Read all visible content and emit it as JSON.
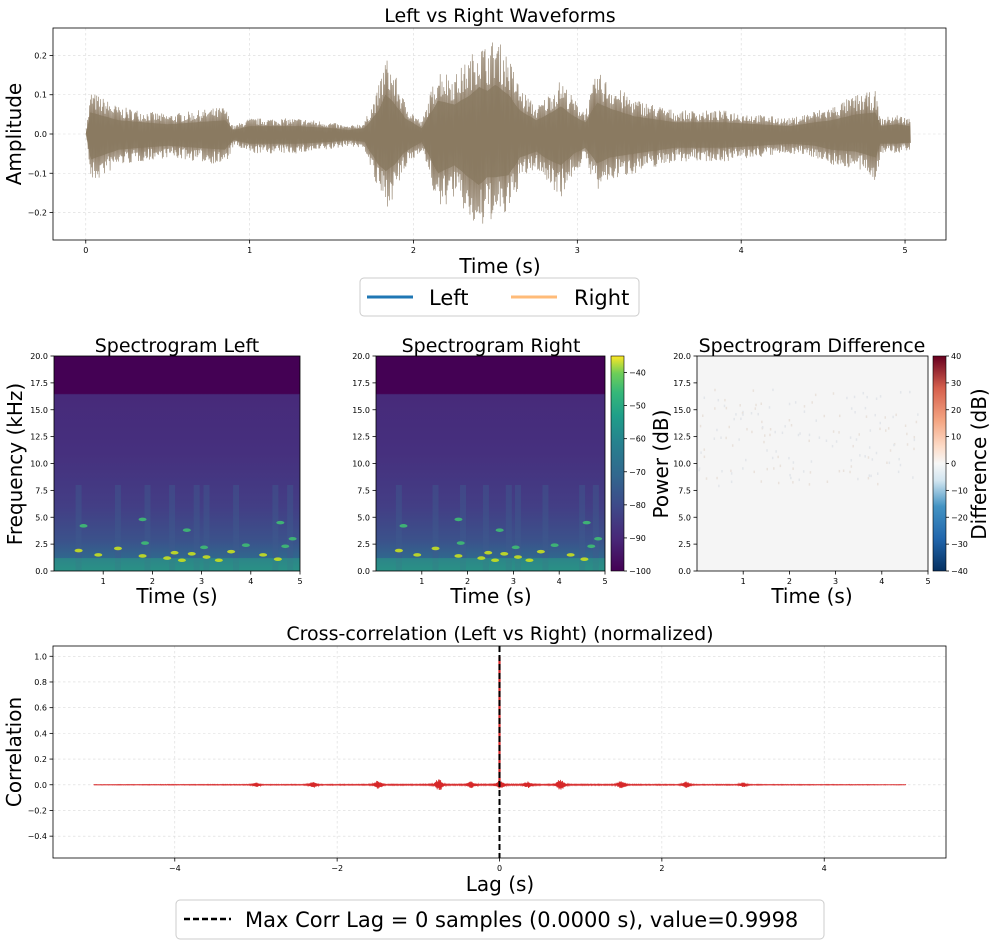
{
  "chart_data": [
    {
      "id": "waveform",
      "type": "line",
      "title": "Left vs Right Waveforms",
      "xlabel": "Time (s)",
      "ylabel": "Amplitude",
      "xlim": [
        -0.2,
        5.25
      ],
      "ylim": [
        -0.27,
        0.27
      ],
      "xticks": [
        0,
        1,
        2,
        3,
        4,
        5
      ],
      "yticks": [
        -0.2,
        -0.1,
        0.0,
        0.1,
        0.2
      ],
      "grid": true,
      "legend": {
        "placement": "below",
        "entries": [
          "Left",
          "Right"
        ]
      },
      "series": [
        {
          "name": "Left",
          "color": "#1f77b4"
        },
        {
          "name": "Right",
          "color": "#ffbb78"
        }
      ],
      "envelope": {
        "t": [
          0.0,
          0.03,
          0.2,
          0.5,
          0.85,
          0.9,
          1.0,
          1.3,
          1.5,
          1.6,
          1.7,
          1.78,
          1.83,
          1.88,
          1.95,
          2.05,
          2.1,
          2.15,
          2.25,
          2.35,
          2.4,
          2.45,
          2.5,
          2.58,
          2.65,
          2.75,
          2.82,
          2.9,
          2.98,
          3.05,
          3.12,
          3.2,
          3.35,
          3.6,
          3.9,
          4.3,
          4.45,
          4.55,
          4.7,
          4.82,
          4.85,
          4.95,
          5.03
        ],
        "upper": [
          0.0,
          0.11,
          0.07,
          0.05,
          0.07,
          0.02,
          0.04,
          0.04,
          0.03,
          0.02,
          0.03,
          0.11,
          0.2,
          0.16,
          0.08,
          0.03,
          0.1,
          0.17,
          0.15,
          0.2,
          0.24,
          0.22,
          0.25,
          0.2,
          0.12,
          0.07,
          0.1,
          0.14,
          0.09,
          0.06,
          0.16,
          0.13,
          0.09,
          0.06,
          0.06,
          0.04,
          0.06,
          0.07,
          0.1,
          0.11,
          0.04,
          0.05,
          0.04
        ],
        "lower": [
          0.0,
          -0.13,
          -0.08,
          -0.06,
          -0.08,
          -0.03,
          -0.05,
          -0.05,
          -0.04,
          -0.03,
          -0.04,
          -0.15,
          -0.19,
          -0.16,
          -0.09,
          -0.04,
          -0.12,
          -0.2,
          -0.16,
          -0.23,
          -0.26,
          -0.22,
          -0.22,
          -0.21,
          -0.12,
          -0.09,
          -0.13,
          -0.16,
          -0.1,
          -0.07,
          -0.15,
          -0.12,
          -0.1,
          -0.07,
          -0.07,
          -0.05,
          -0.06,
          -0.08,
          -0.09,
          -0.12,
          -0.05,
          -0.05,
          -0.04
        ]
      }
    },
    {
      "id": "spec-left",
      "type": "heatmap",
      "title": "Spectrogram Left",
      "xlabel": "Time (s)",
      "ylabel": "Frequency (kHz)",
      "xlim": [
        0,
        5
      ],
      "ylim": [
        0,
        20
      ],
      "xticks": [
        1,
        2,
        3,
        4,
        5
      ],
      "yticks": [
        0.0,
        2.5,
        5.0,
        7.5,
        10.0,
        12.5,
        15.0,
        17.5,
        20.0
      ],
      "colormap": "viridis"
    },
    {
      "id": "spec-right",
      "type": "heatmap",
      "title": "Spectrogram Right",
      "xlabel": "Time (s)",
      "ylabel": "",
      "xlim": [
        0,
        5
      ],
      "ylim": [
        0,
        20
      ],
      "xticks": [
        1,
        2,
        3,
        4,
        5
      ],
      "yticks": [
        0.0,
        2.5,
        5.0,
        7.5,
        10.0,
        12.5,
        15.0,
        17.5,
        20.0
      ],
      "colormap": "viridis",
      "colorbar": {
        "label": "Power (dB)",
        "range": [
          -100,
          -35
        ],
        "ticks": [
          -40,
          -50,
          -60,
          -70,
          -80,
          -90,
          -100
        ]
      }
    },
    {
      "id": "spec-diff",
      "type": "heatmap",
      "title": "Spectrogram Difference",
      "xlabel": "Time (s)",
      "ylabel": "",
      "xlim": [
        0,
        5
      ],
      "ylim": [
        0,
        20
      ],
      "xticks": [
        1,
        2,
        3,
        4,
        5
      ],
      "yticks": [
        0.0,
        2.5,
        5.0,
        7.5,
        10.0,
        12.5,
        15.0,
        17.5,
        20.0
      ],
      "colormap": "RdBu_r",
      "colorbar": {
        "label": "Difference (dB)",
        "range": [
          -40,
          40
        ],
        "ticks": [
          40,
          30,
          20,
          10,
          0,
          -10,
          -20,
          -30,
          -40
        ]
      }
    },
    {
      "id": "xcorr",
      "type": "line",
      "title": "Cross-correlation (Left vs Right) (normalized)",
      "xlabel": "Lag (s)",
      "ylabel": "Correlation",
      "xlim": [
        -5.5,
        5.5
      ],
      "ylim": [
        -0.57,
        1.08
      ],
      "xticks": [
        -4,
        -2,
        0,
        2,
        4
      ],
      "yticks": [
        -0.4,
        -0.2,
        0.0,
        0.2,
        0.4,
        0.6,
        0.8,
        1.0
      ],
      "grid": true,
      "series": [
        {
          "name": "",
          "color": "#d62728"
        }
      ],
      "marker_line": {
        "x": 0,
        "color": "#000000"
      },
      "legend": {
        "placement": "below",
        "entries": [
          "Max Corr Lag = 0 samples (0.0000 s), value=0.9998"
        ]
      },
      "bursts": {
        "lag": [
          -3.0,
          -2.3,
          -1.5,
          -0.75,
          -0.35,
          0.35,
          0.75,
          1.5,
          2.3,
          3.0
        ],
        "height": [
          0.015,
          0.02,
          0.03,
          0.04,
          0.02,
          0.02,
          0.04,
          0.03,
          0.02,
          0.015
        ]
      },
      "peak": {
        "lag": 0,
        "value": 0.9998
      }
    }
  ]
}
